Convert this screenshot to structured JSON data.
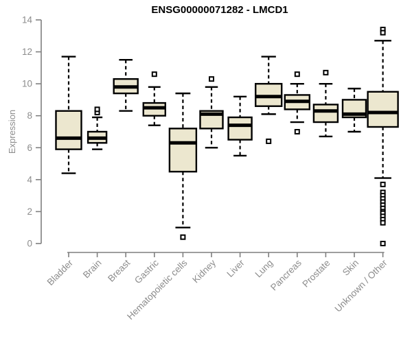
{
  "title": "ENSG00000071282 - LMCD1",
  "colors": {
    "background": "#ffffff",
    "box_fill": "#ece7cf",
    "box_border": "#000000",
    "median": "#000000",
    "whisker": "#000000",
    "outlier_fill": "#ffffff",
    "axis_line": "#7f7f7f",
    "axis_text": "#8c8c8c",
    "title_text": "#000000"
  },
  "chart_data": {
    "type": "boxplot",
    "title": "ENSG00000071282 - LMCD1",
    "xlabel": "",
    "ylabel": "Expression",
    "ylim": [
      0,
      14
    ],
    "yticks": [
      0,
      2,
      4,
      6,
      8,
      10,
      12,
      14
    ],
    "grid": false,
    "legend": "none",
    "categories": [
      "Bladder",
      "Brain",
      "Breast",
      "Gastric",
      "Hematopoietic cells",
      "Kidney",
      "Liver",
      "Lung",
      "Pancreas",
      "Prostate",
      "Skin",
      "Unknown / Other"
    ],
    "boxes": [
      {
        "name": "Bladder",
        "low": 4.4,
        "q1": 5.9,
        "median": 6.6,
        "q3": 8.3,
        "high": 11.7,
        "outliers": [],
        "w": 37
      },
      {
        "name": "Brain",
        "low": 5.9,
        "q1": 6.3,
        "median": 6.6,
        "q3": 7.0,
        "high": 7.9,
        "outliers": [
          8.2,
          8.4
        ],
        "w": 27
      },
      {
        "name": "Breast",
        "low": 8.3,
        "q1": 9.4,
        "median": 9.8,
        "q3": 10.3,
        "high": 11.5,
        "outliers": [],
        "w": 35
      },
      {
        "name": "Gastric",
        "low": 7.4,
        "q1": 8.0,
        "median": 8.5,
        "q3": 8.8,
        "high": 9.8,
        "outliers": [
          10.6
        ],
        "w": 32
      },
      {
        "name": "Hematopoietic cells",
        "low": 1.0,
        "q1": 4.5,
        "median": 6.3,
        "q3": 7.2,
        "high": 9.4,
        "outliers": [
          0.4
        ],
        "w": 39
      },
      {
        "name": "Kidney",
        "low": 6.0,
        "q1": 7.2,
        "median": 8.1,
        "q3": 8.3,
        "high": 9.8,
        "outliers": [
          10.3
        ],
        "w": 33
      },
      {
        "name": "Liver",
        "low": 5.5,
        "q1": 6.5,
        "median": 7.4,
        "q3": 7.9,
        "high": 9.2,
        "outliers": [],
        "w": 34
      },
      {
        "name": "Lung",
        "low": 8.1,
        "q1": 8.6,
        "median": 9.2,
        "q3": 10.0,
        "high": 11.7,
        "outliers": [
          6.4
        ],
        "w": 38
      },
      {
        "name": "Pancreas",
        "low": 7.6,
        "q1": 8.4,
        "median": 8.9,
        "q3": 9.3,
        "high": 10.0,
        "outliers": [
          10.6,
          7.0
        ],
        "w": 36
      },
      {
        "name": "Prostate",
        "low": 6.7,
        "q1": 7.6,
        "median": 8.3,
        "q3": 8.7,
        "high": 10.0,
        "outliers": [
          10.7
        ],
        "w": 35
      },
      {
        "name": "Skin",
        "low": 7.0,
        "q1": 7.9,
        "median": 8.1,
        "q3": 9.0,
        "high": 9.7,
        "outliers": [],
        "w": 34
      },
      {
        "name": "Unknown / Other",
        "low": 4.1,
        "q1": 7.3,
        "median": 8.2,
        "q3": 9.5,
        "high": 12.7,
        "outliers": [
          13.4,
          13.2,
          3.7,
          3.2,
          3.0,
          2.8,
          2.6,
          2.4,
          2.2,
          2.0,
          1.9,
          1.7,
          1.5,
          1.3,
          0.0
        ],
        "w": 44
      }
    ]
  }
}
